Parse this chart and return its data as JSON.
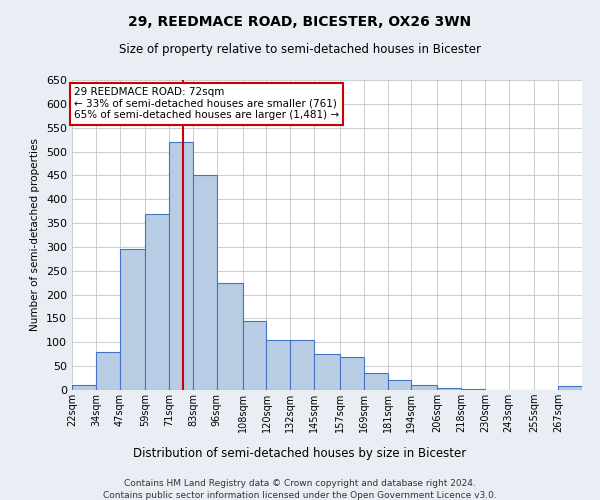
{
  "title": "29, REEDMACE ROAD, BICESTER, OX26 3WN",
  "subtitle": "Size of property relative to semi-detached houses in Bicester",
  "xlabel": "Distribution of semi-detached houses by size in Bicester",
  "ylabel": "Number of semi-detached properties",
  "footer1": "Contains HM Land Registry data © Crown copyright and database right 2024.",
  "footer2": "Contains public sector information licensed under the Open Government Licence v3.0.",
  "annotation_title": "29 REEDMACE ROAD: 72sqm",
  "annotation_line1": "← 33% of semi-detached houses are smaller (761)",
  "annotation_line2": "65% of semi-detached houses are larger (1,481) →",
  "property_size": 72,
  "categories": [
    "22sqm",
    "34sqm",
    "47sqm",
    "59sqm",
    "71sqm",
    "83sqm",
    "96sqm",
    "108sqm",
    "120sqm",
    "132sqm",
    "145sqm",
    "157sqm",
    "169sqm",
    "181sqm",
    "194sqm",
    "206sqm",
    "218sqm",
    "230sqm",
    "243sqm",
    "255sqm",
    "267sqm"
  ],
  "bin_edges": [
    16,
    28,
    40,
    53,
    65,
    77,
    89,
    102,
    114,
    126,
    138,
    151,
    163,
    175,
    187,
    200,
    212,
    224,
    236,
    249,
    261,
    273
  ],
  "values": [
    10,
    80,
    295,
    370,
    520,
    450,
    225,
    145,
    105,
    105,
    75,
    70,
    35,
    20,
    10,
    5,
    2,
    0,
    0,
    0,
    8
  ],
  "bar_color": "#b8cce4",
  "bar_edge_color": "#4472c4",
  "line_color": "#cc0000",
  "background_color": "#e8eef4",
  "plot_background": "#ffffff",
  "ylim": [
    0,
    650
  ],
  "yticks": [
    0,
    50,
    100,
    150,
    200,
    250,
    300,
    350,
    400,
    450,
    500,
    550,
    600,
    650
  ]
}
